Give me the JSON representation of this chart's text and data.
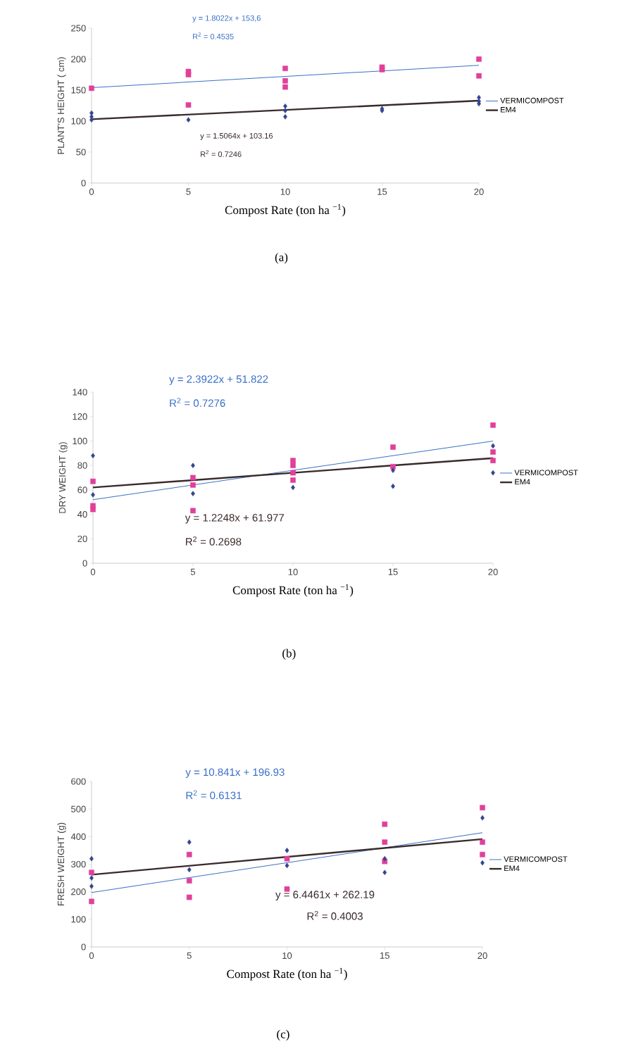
{
  "chart_data": [
    {
      "type": "scatter",
      "ylabel": "PLANT'S HEIGHT ( cm)",
      "xlabel": "Compost Rate (ton ha $^{−1}$)",
      "xlim": [
        0,
        20
      ],
      "ylim": [
        0,
        250
      ],
      "xticks": [
        0,
        5,
        10,
        15,
        20
      ],
      "yticks": [
        0,
        50,
        100,
        150,
        200,
        250
      ],
      "legend": "right",
      "annotations": [
        "y = 1.8022x + 153,6",
        "R$^{2}$ = 0.4535",
        "y = 1.5064x + 103.16",
        "R$^{2}$ = 0.7246",
        "(a)"
      ],
      "series": [
        {
          "type": "line",
          "name": "VERMICOMPOST",
          "color": "#3a70c8",
          "x": [
            0,
            20
          ],
          "values": [
            154,
            190
          ]
        },
        {
          "type": "line",
          "name": "EM4",
          "color": "#3a2a2a",
          "x": [
            0,
            20
          ],
          "values": [
            103,
            133
          ]
        },
        {
          "color": "#e0409a",
          "marker": "square",
          "x": [
            0,
            5,
            5,
            5,
            10,
            10,
            10,
            15,
            15,
            20,
            20
          ],
          "values": [
            153,
            180,
            175,
            126,
            185,
            165,
            155,
            187,
            183,
            200,
            173
          ]
        },
        {
          "color": "#34448f",
          "marker": "diamond",
          "x": [
            0,
            0,
            0,
            5,
            10,
            10,
            10,
            15,
            15,
            20,
            20,
            20
          ],
          "values": [
            113,
            107,
            102,
            102,
            124,
            117,
            107,
            120,
            117,
            138,
            132,
            128
          ]
        }
      ]
    },
    {
      "type": "scatter",
      "ylabel": "DRY WEIGHT (g)",
      "xlabel": "Compost Rate (ton ha $^{−1}$)",
      "xlim": [
        0,
        20
      ],
      "ylim": [
        0,
        140
      ],
      "xticks": [
        0,
        5,
        10,
        15,
        20
      ],
      "yticks": [
        0,
        20,
        40,
        60,
        80,
        100,
        120,
        140
      ],
      "legend": "right",
      "annotations": [
        "y = 2.3922x + 51.822",
        "R$^{2}$ = 0.7276",
        "y = 1.2248x + 61.977",
        "R$^{2}$ = 0.2698",
        "(b)"
      ],
      "series": [
        {
          "type": "line",
          "name": "VERMICOMPOST",
          "color": "#3a70c8",
          "x": [
            0,
            20
          ],
          "values": [
            52,
            100
          ]
        },
        {
          "type": "line",
          "name": "EM4",
          "color": "#3a2a2a",
          "x": [
            0,
            20
          ],
          "values": [
            62,
            86
          ]
        },
        {
          "color": "#e0409a",
          "marker": "square",
          "x": [
            0,
            0,
            0,
            5,
            5,
            5,
            10,
            10,
            10,
            10,
            15,
            15,
            20,
            20,
            20
          ],
          "values": [
            67,
            47,
            44,
            70,
            64,
            43,
            84,
            80,
            74,
            68,
            95,
            79,
            113,
            91,
            84
          ]
        },
        {
          "color": "#34448f",
          "marker": "diamond",
          "x": [
            0,
            0,
            5,
            5,
            10,
            15,
            15,
            20,
            20
          ],
          "values": [
            88,
            56,
            80,
            57,
            62,
            76,
            63,
            96,
            74
          ]
        }
      ]
    },
    {
      "type": "scatter",
      "ylabel": "FRESH WEIGHT (g)",
      "xlabel": "Compost Rate (ton ha $^{−1}$)",
      "xlim": [
        0,
        20
      ],
      "ylim": [
        0,
        600
      ],
      "xticks": [
        0,
        5,
        10,
        15,
        20
      ],
      "yticks": [
        0,
        100,
        200,
        300,
        400,
        500,
        600
      ],
      "legend": "right",
      "annotations": [
        "y = 10.841x + 196.93",
        "R$^{2}$ = 0.6131",
        "y = 6.4461x + 262.19",
        "R$^{2}$ = 0.4003",
        "(c)"
      ],
      "series": [
        {
          "type": "line",
          "name": "VERMICOMPOST",
          "color": "#3a70c8",
          "x": [
            0,
            20
          ],
          "values": [
            197,
            414
          ]
        },
        {
          "type": "line",
          "name": "EM4",
          "color": "#3a2a2a",
          "x": [
            0,
            20
          ],
          "values": [
            262,
            391
          ]
        },
        {
          "color": "#e0409a",
          "marker": "square",
          "x": [
            0,
            0,
            5,
            5,
            5,
            10,
            10,
            15,
            15,
            15,
            20,
            20,
            20
          ],
          "values": [
            270,
            165,
            335,
            240,
            180,
            320,
            210,
            445,
            380,
            310,
            505,
            380,
            335
          ]
        },
        {
          "color": "#34448f",
          "marker": "diamond",
          "x": [
            0,
            0,
            0,
            5,
            5,
            10,
            10,
            15,
            15,
            20,
            20
          ],
          "values": [
            320,
            250,
            220,
            380,
            280,
            350,
            295,
            320,
            270,
            468,
            305
          ]
        }
      ]
    }
  ]
}
